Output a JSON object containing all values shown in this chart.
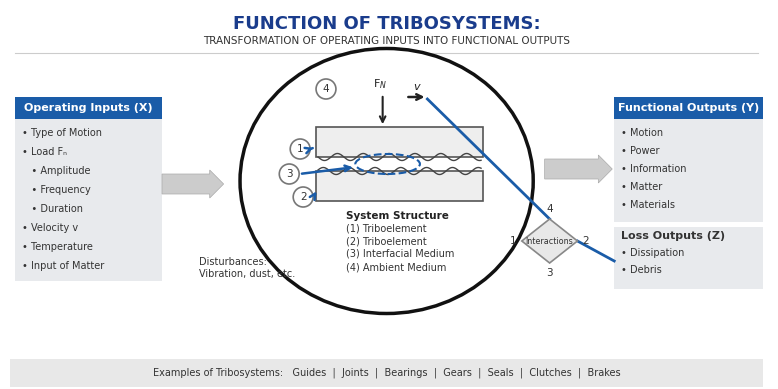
{
  "title": "FUNCTION OF TRIBOSYSTEMS:",
  "subtitle": "TRANSFORMATION OF OPERATING INPUTS INTO FUNCTIONAL OUTPUTS",
  "title_color": "#1a3c8c",
  "subtitle_color": "#333333",
  "bg_color": "#ffffff",
  "bottom_bar_color": "#e8e8e8",
  "examples_text": "Examples of Tribosystems:   Guides  |  Joints  |  Bearings  |  Gears  |  Seals  |  Clutches  |  Brakes",
  "left_box_header": "Operating Inputs (X)",
  "left_box_items": [
    "• Type of Motion",
    "• Load Fₙ",
    "   • Amplitude",
    "   • Frequency",
    "   • Duration",
    "• Velocity v",
    "• Temperature",
    "• Input of Matter"
  ],
  "right_top_header": "Functional Outputs (Y)",
  "right_top_items": [
    "• Motion",
    "• Power",
    "• Information",
    "• Matter",
    "• Materials"
  ],
  "right_bot_header": "Loss Outputs (Z)",
  "right_bot_items": [
    "• Dissipation",
    "• Debris"
  ],
  "system_structure_title": "System Structure",
  "system_structure_items": [
    "(1) Triboelement",
    "(2) Triboelement",
    "(3) Interfacial Medium",
    "(4) Ambient Medium"
  ],
  "disturbances_text": "Disturbances:\nVibration, dust, etc.",
  "interactions_label": "Interactions",
  "header_bg": "#1a5ca8",
  "header_text_color": "#ffffff",
  "box_bg": "#e8eaed",
  "blue_line_color": "#1a5ca8",
  "arrow_color": "#c8c8c8",
  "ellipse_color": "#111111"
}
